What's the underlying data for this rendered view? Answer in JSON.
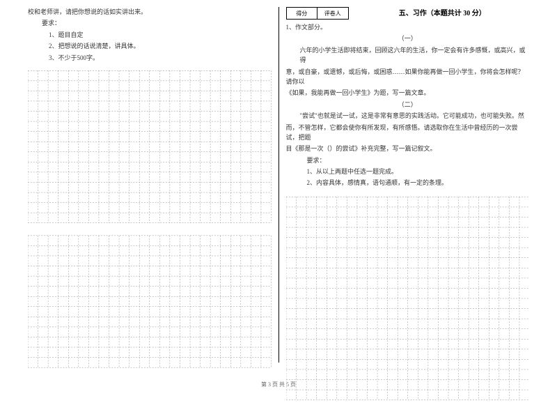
{
  "leftColumn": {
    "intro": "校和老师讲，请把你想说的话如实讲出来。",
    "reqLabel": "要求：",
    "req1": "1、题目自定",
    "req2": "2、把想说的话说清楚，讲具体。",
    "req3": "3、不少于500字。"
  },
  "rightColumn": {
    "scoreLabel1": "得分",
    "scoreLabel2": "评卷人",
    "sectionTitle": "五、习作（本题共计 30 分）",
    "item1": "1、作文部分。",
    "part1Label": "（一）",
    "part1Text1": "六年的小学生活即将结束，回顾这六年的生活，你一定会有许多感慨，或高兴，或得",
    "part1Text2": "意，或自豪，或遗憾，或后悔，或困惑……如果你能再做一回小学生，你将会怎样呢？请你以",
    "part1Text3": "《如果，我能再做一回小学生》为题，写一篇文章。",
    "part2Label": "（二）",
    "part2Text1": "\"尝试\"也就是试一试，这是非常有意思的实践活动。它可能成功，也可能失败。然",
    "part2Text2": "而，不管怎样，它都会使你有所发现，有所感悟。请选取你在生活中曾经历的一次尝试，把题",
    "part2Text3": "目《那是一次（）的尝试》补充完整，写一篇记叙文。",
    "reqLabel": "要求：",
    "req1": "1、从以上两题中任选一题完成。",
    "req2": "2、内容具体，感情真，语句通顺，有一定的条理。"
  },
  "footer": "第 3 页 共 5 页",
  "grid": {
    "cellSize": 15,
    "leftGrid1": {
      "rows": 15,
      "cols": 24
    },
    "leftGrid2": {
      "rows": 13,
      "cols": 24
    },
    "rightGrid": {
      "rows": 20,
      "cols": 24
    },
    "strokeColor": "#888",
    "strokeWidth": 0.5,
    "dashArray": "2,2"
  }
}
